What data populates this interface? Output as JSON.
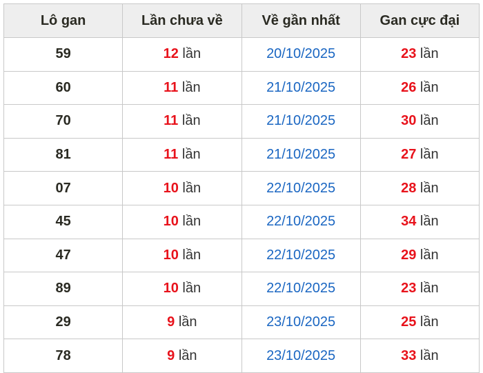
{
  "headers": [
    "Lô gan",
    "Lần chưa về",
    "Về gần nhất",
    "Gan cực đại"
  ],
  "unit": "lần",
  "colors": {
    "count": "#e8121b",
    "date": "#1a66c2",
    "header_bg": "#eeeeee"
  },
  "rows": [
    {
      "number": "59",
      "missed": "12",
      "last": "20/10/2025",
      "max": "23"
    },
    {
      "number": "60",
      "missed": "11",
      "last": "21/10/2025",
      "max": "26"
    },
    {
      "number": "70",
      "missed": "11",
      "last": "21/10/2025",
      "max": "30"
    },
    {
      "number": "81",
      "missed": "11",
      "last": "21/10/2025",
      "max": "27"
    },
    {
      "number": "07",
      "missed": "10",
      "last": "22/10/2025",
      "max": "28"
    },
    {
      "number": "45",
      "missed": "10",
      "last": "22/10/2025",
      "max": "34"
    },
    {
      "number": "47",
      "missed": "10",
      "last": "22/10/2025",
      "max": "29"
    },
    {
      "number": "89",
      "missed": "10",
      "last": "22/10/2025",
      "max": "23"
    },
    {
      "number": "29",
      "missed": "9",
      "last": "23/10/2025",
      "max": "25"
    },
    {
      "number": "78",
      "missed": "9",
      "last": "23/10/2025",
      "max": "33"
    }
  ]
}
